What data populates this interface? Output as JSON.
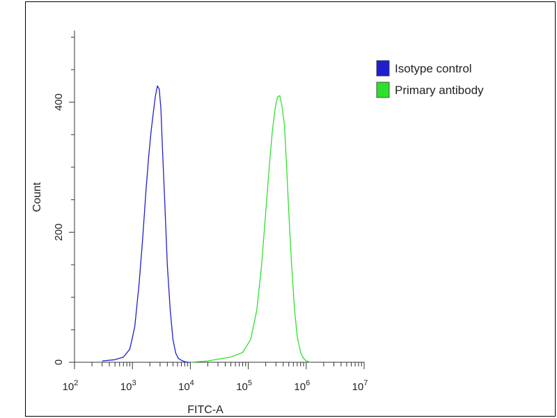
{
  "chart_data": {
    "type": "line",
    "title": "",
    "xlabel": "FITC-A",
    "ylabel": "Count",
    "x_scale": "log",
    "xlim": [
      100,
      10000000
    ],
    "ylim": [
      0,
      510
    ],
    "x_ticks": [
      {
        "value": 100,
        "base": "10",
        "exp": "2"
      },
      {
        "value": 1000,
        "base": "10",
        "exp": "3"
      },
      {
        "value": 10000,
        "base": "10",
        "exp": "4"
      },
      {
        "value": 100000,
        "base": "10",
        "exp": "5"
      },
      {
        "value": 1000000,
        "base": "10",
        "exp": "6"
      },
      {
        "value": 10000000,
        "base": "10",
        "exp": "7"
      }
    ],
    "y_ticks": [
      {
        "value": 0,
        "label": "0"
      },
      {
        "value": 200,
        "label": "200"
      },
      {
        "value": 400,
        "label": "400"
      }
    ],
    "grid": false,
    "legend_position": "top-right",
    "series": [
      {
        "name": "Isotype control",
        "color": "#1f1fd0",
        "x": [
          300,
          500,
          700,
          900,
          1100,
          1300,
          1500,
          1700,
          1900,
          2100,
          2300,
          2500,
          2700,
          2900,
          3100,
          3300,
          3600,
          4000,
          4500,
          5000,
          5600,
          6200,
          7000,
          8000,
          9000,
          10000
        ],
        "y": [
          2,
          4,
          8,
          20,
          55,
          120,
          190,
          260,
          315,
          355,
          385,
          410,
          425,
          420,
          390,
          330,
          250,
          150,
          80,
          35,
          14,
          6,
          3,
          1,
          0,
          0
        ]
      },
      {
        "name": "Primary antibody",
        "color": "#2ee02e",
        "x": [
          10000,
          20000,
          50000,
          80000,
          110000,
          140000,
          170000,
          200000,
          230000,
          260000,
          290000,
          320000,
          350000,
          380000,
          420000,
          460000,
          500000,
          560000,
          630000,
          700000,
          800000,
          900000,
          1000000,
          1200000
        ],
        "y": [
          0,
          2,
          8,
          15,
          35,
          80,
          150,
          230,
          300,
          355,
          390,
          408,
          410,
          395,
          365,
          300,
          230,
          150,
          80,
          40,
          15,
          6,
          2,
          0
        ]
      }
    ]
  }
}
